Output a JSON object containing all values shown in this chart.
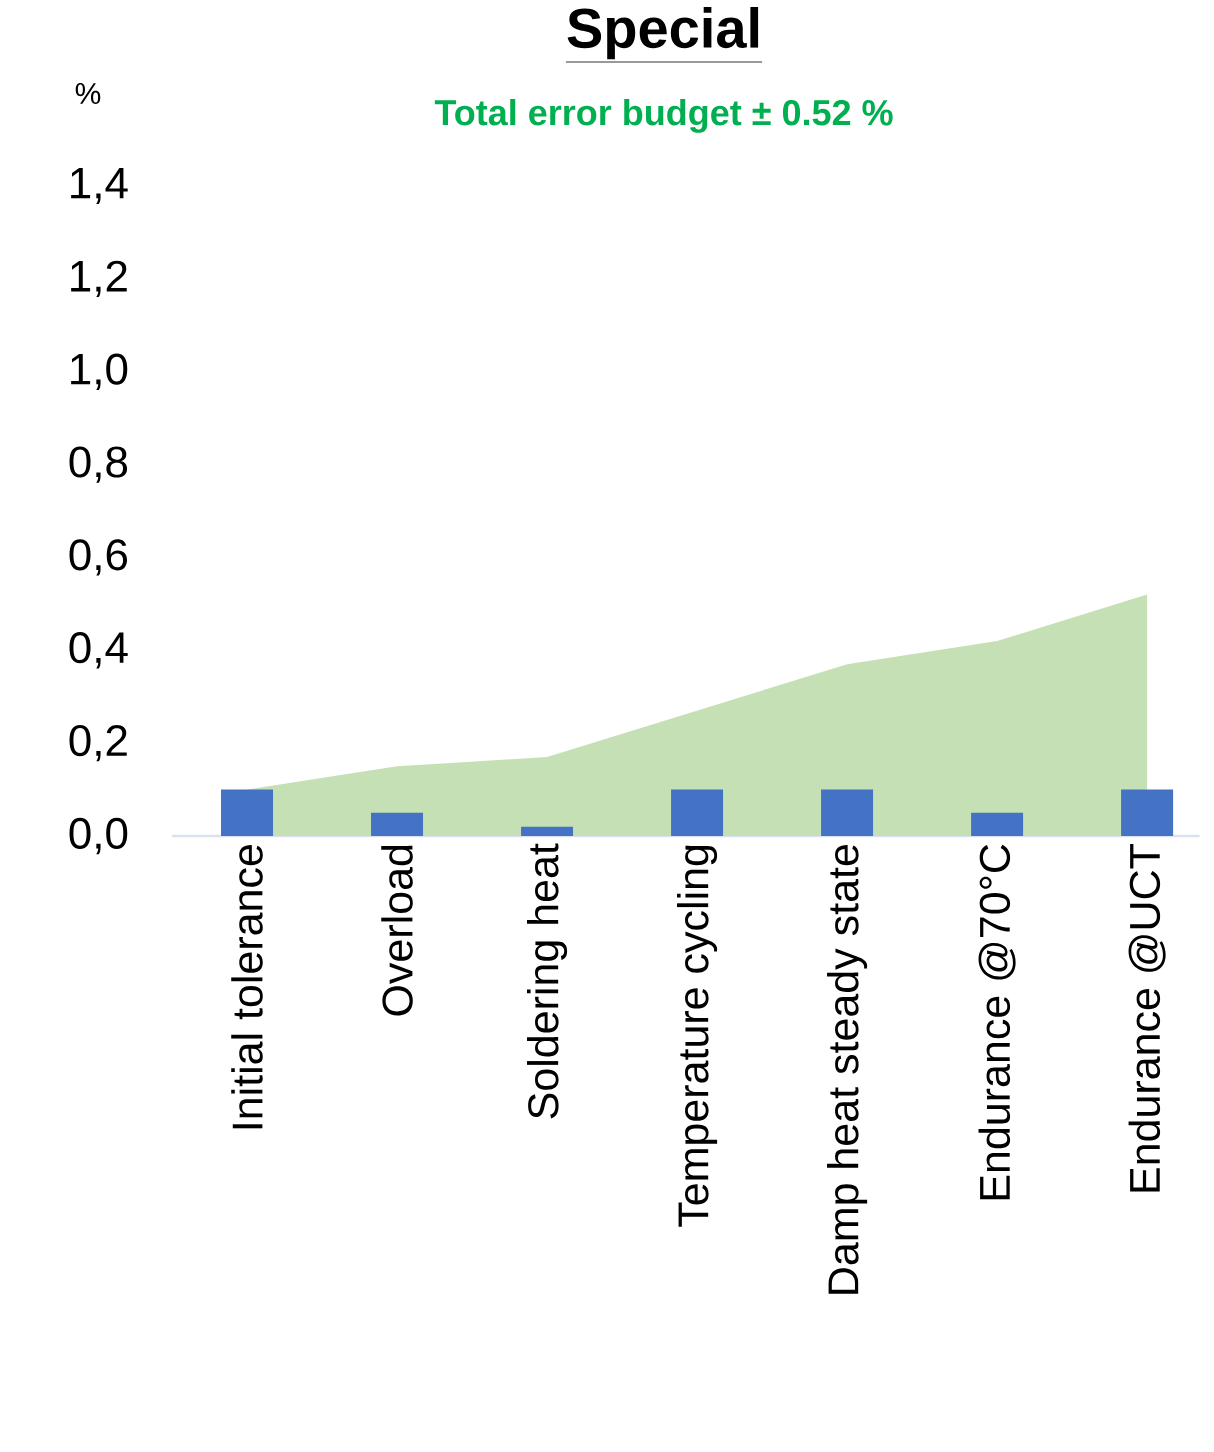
{
  "chart_data": {
    "type": "bar",
    "title": "Special",
    "subtitle": "Total error budget ± 0.52 %",
    "ylabel": "%",
    "categories": [
      "Initial tolerance",
      "Overload",
      "Soldering heat",
      "Temperature cycling",
      "Damp heat steady state",
      "Endurance @70°C",
      "Endurance @UCT"
    ],
    "series": [
      {
        "type": "area",
        "color": "#c5e0b4",
        "values": [
          0.1,
          0.15,
          0.17,
          0.27,
          0.37,
          0.42,
          0.52
        ]
      },
      {
        "color": "#4472c4",
        "values": [
          0.1,
          0.05,
          0.02,
          0.1,
          0.1,
          0.05,
          0.1
        ]
      }
    ],
    "ylim": [
      0,
      1.4
    ],
    "yticks": [
      {
        "value": 0,
        "label": "0,0"
      },
      {
        "value": 0.2,
        "label": "0,2"
      },
      {
        "value": 0.4,
        "label": "0,4"
      },
      {
        "value": 0.6,
        "label": "0,6"
      },
      {
        "value": 0.8,
        "label": "0,8"
      },
      {
        "value": 1.0,
        "label": "1,0"
      },
      {
        "value": 1.2,
        "label": "1,2"
      },
      {
        "value": 1.4,
        "label": "1,4"
      }
    ]
  }
}
